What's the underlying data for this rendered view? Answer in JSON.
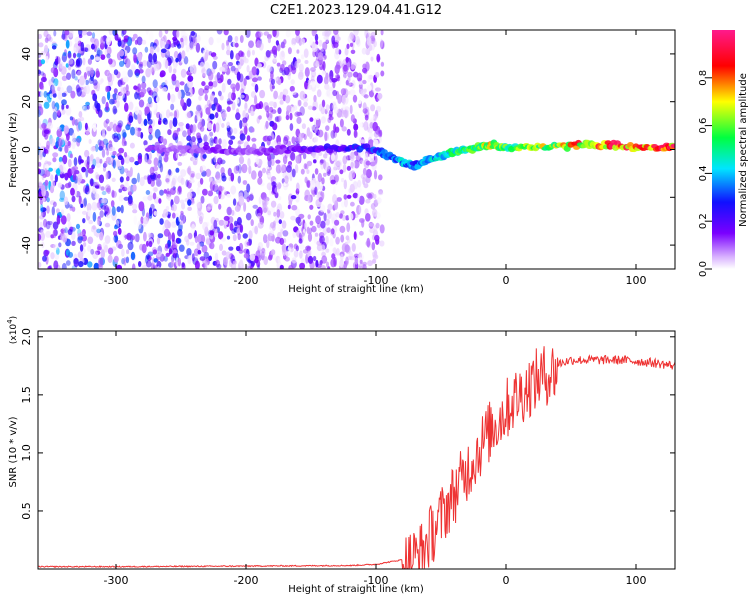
{
  "figure": {
    "title": "C2E1.2023.129.04.41.G12"
  },
  "chart_data": [
    {
      "type": "heatmap",
      "xlabel": "Height of straight line (km)",
      "ylabel": "Frequency (Hz)",
      "xlim": [
        -360,
        130
      ],
      "ylim": [
        -50,
        50
      ],
      "x_ticks": [
        -300,
        -200,
        -100,
        0,
        100
      ],
      "y_ticks": [
        -40,
        -20,
        0,
        20,
        40
      ],
      "colorbar": {
        "label": "Normalized spectral amplitude",
        "range": [
          0,
          1
        ],
        "ticks": [
          0.0,
          0.2,
          0.4,
          0.6,
          0.8
        ],
        "colormap": [
          "#ffffff",
          "#d9b3ff",
          "#7a00ff",
          "#1010ff",
          "#00e5ff",
          "#00ff40",
          "#ffff00",
          "#ff0000",
          "#ff1a8c"
        ]
      },
      "signal_trace": {
        "x": [
          -275,
          -250,
          -225,
          -200,
          -175,
          -150,
          -125,
          -100,
          -90,
          -80,
          -70,
          -60,
          -50,
          -40,
          -30,
          -20,
          -10,
          0,
          20,
          40,
          60,
          80,
          100,
          120,
          130
        ],
        "y": [
          0,
          0,
          0,
          -1,
          0,
          0,
          1,
          0,
          -3,
          -5,
          -7,
          -4,
          -3,
          -1,
          0,
          1,
          2,
          1,
          1,
          1,
          2,
          2,
          1,
          1,
          1
        ],
        "amplitude": [
          0.2,
          0.2,
          0.25,
          0.2,
          0.25,
          0.3,
          0.35,
          0.4,
          0.45,
          0.5,
          0.45,
          0.5,
          0.55,
          0.6,
          0.65,
          0.7,
          0.75,
          0.65,
          0.7,
          0.75,
          0.85,
          0.9,
          0.85,
          0.9,
          0.9
        ]
      },
      "noise_region_x": [
        -360,
        -95
      ]
    },
    {
      "type": "line",
      "xlabel": "Height of straight line (km)",
      "ylabel": "SNR (10 * v/v)",
      "y_multiplier": "(x10^4)",
      "xlim": [
        -360,
        130
      ],
      "ylim": [
        0,
        2.05
      ],
      "x_ticks": [
        -300,
        -200,
        -100,
        0,
        100
      ],
      "y_ticks": [
        0.5,
        1.0,
        1.5,
        2.0
      ],
      "series": [
        {
          "color": "#ee3333",
          "x": [
            -360,
            -300,
            -200,
            -120,
            -100,
            -80,
            -65,
            -55,
            -45,
            -35,
            -25,
            -15,
            -5,
            5,
            15,
            25,
            35,
            50,
            70,
            90,
            110,
            130
          ],
          "y": [
            0.02,
            0.02,
            0.025,
            0.03,
            0.04,
            0.08,
            0.2,
            0.4,
            0.6,
            0.8,
            1.0,
            1.2,
            1.35,
            1.5,
            1.6,
            1.7,
            1.75,
            1.8,
            1.8,
            1.8,
            1.78,
            1.75
          ]
        }
      ]
    }
  ]
}
